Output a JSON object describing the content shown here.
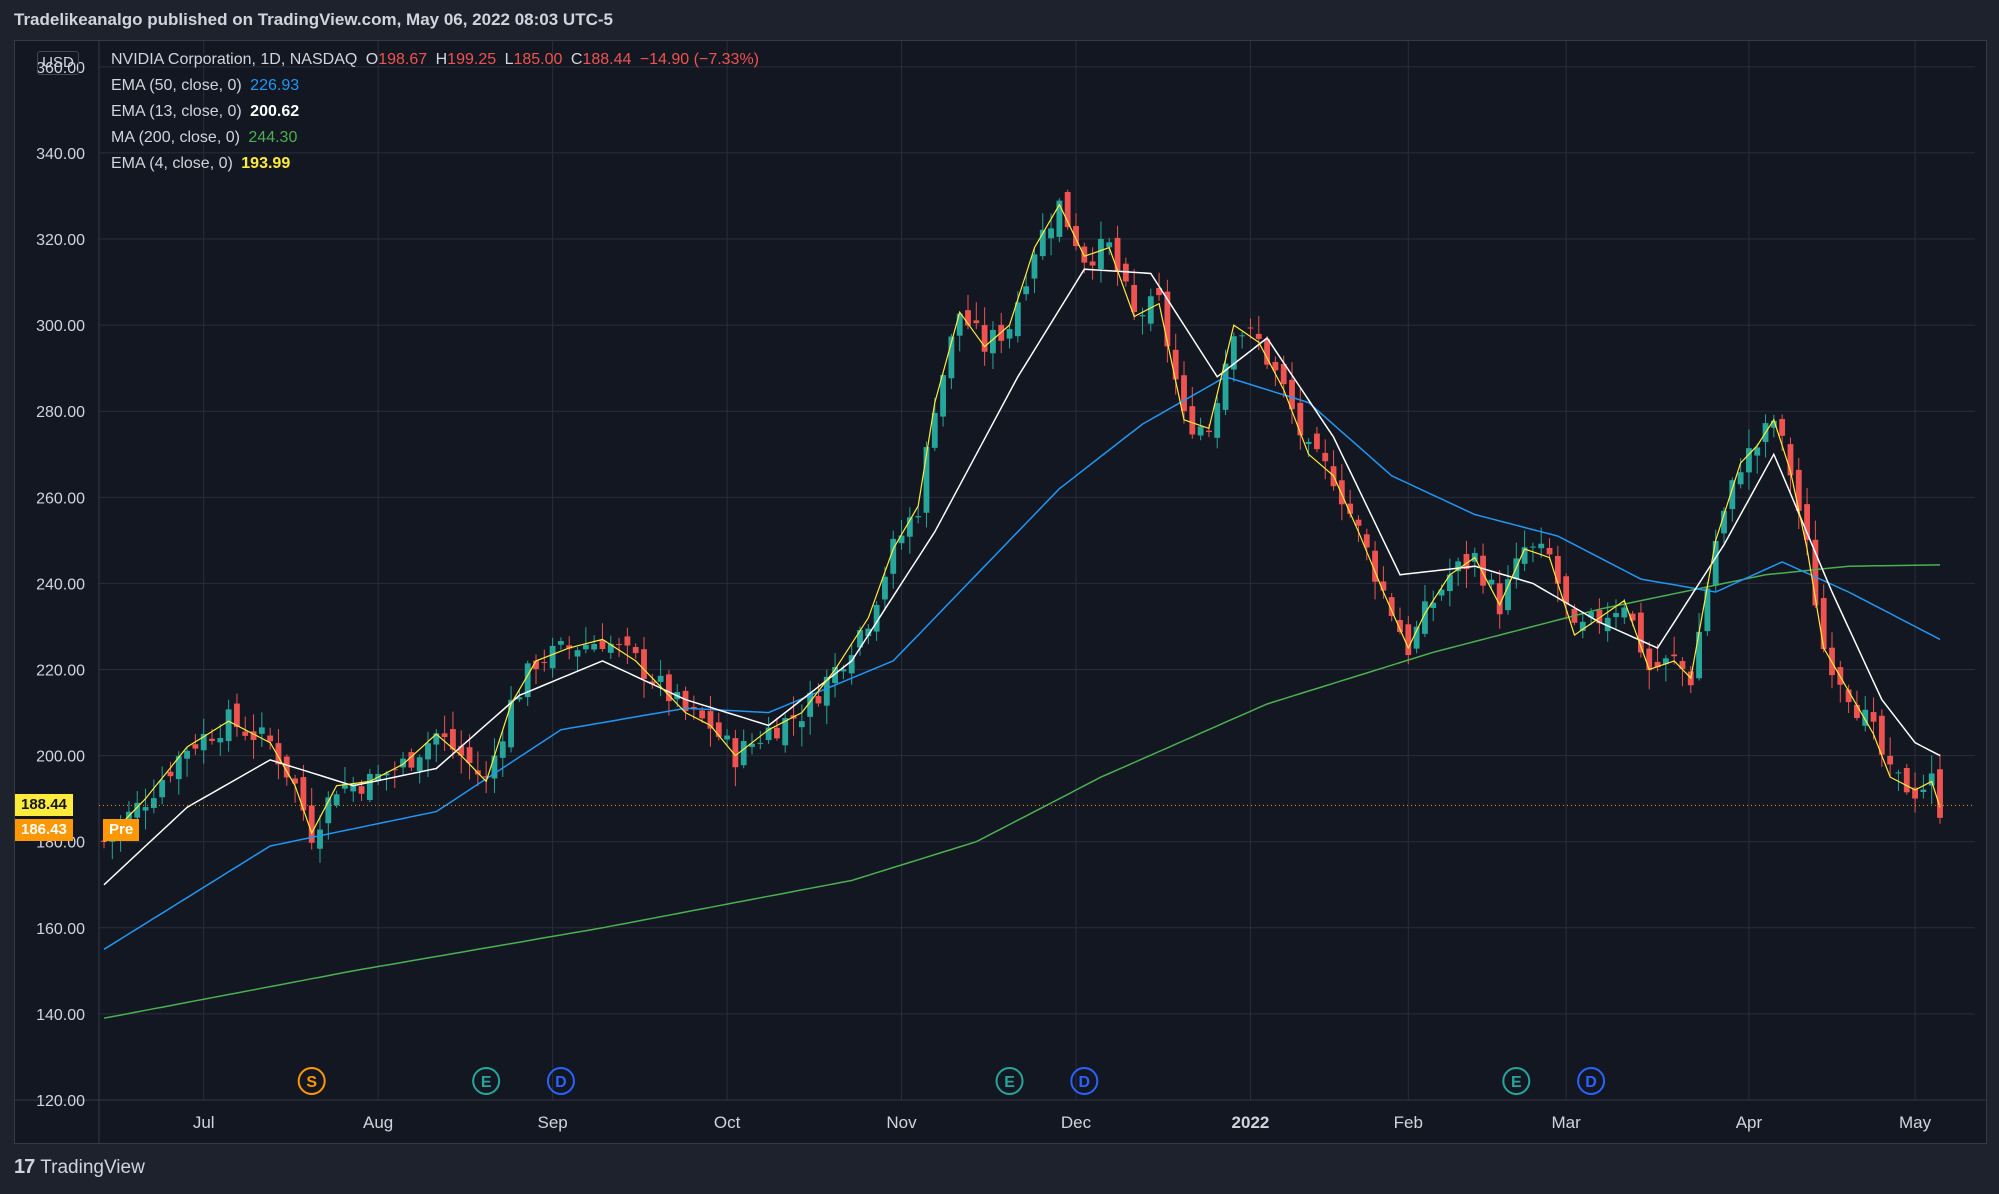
{
  "header": {
    "text": "Tradelikeanalgo published on TradingView.com, May 06, 2022 08:03 UTC-5"
  },
  "footer": {
    "brand": "TradingView"
  },
  "currency_label": "USD",
  "legend": {
    "symbol": "NVIDIA Corporation, 1D, NASDAQ",
    "o_label": "O",
    "o_value": "198.67",
    "h_label": "H",
    "h_value": "199.25",
    "l_label": "L",
    "l_value": "185.00",
    "c_label": "C",
    "c_value": "188.44",
    "change": "−14.90 (−7.33%)",
    "indicators": [
      {
        "label": "EMA (50, close, 0)",
        "value": "226.93",
        "color": "#2962ff"
      },
      {
        "label": "EMA (13, close, 0)",
        "value": "200.62",
        "color": "#ffffff"
      },
      {
        "label": "MA (200, close, 0)",
        "value": "244.30",
        "color": "#4caf50"
      },
      {
        "label": "EMA (4, close, 0)",
        "value": "193.99",
        "color": "#ffeb3b"
      }
    ]
  },
  "price_tags": {
    "last": "188.44",
    "pre_value": "186.43",
    "pre_label": "Pre"
  },
  "colors": {
    "up": "#26a69a",
    "down": "#ef5350",
    "ema50": "#2196f3",
    "ema13": "#ffffff",
    "ma200": "#4caf50",
    "ema4": "#ffeb3b",
    "grid": "#2a2e39",
    "text": "#d1d4dc",
    "last_tag": "#ffeb3b",
    "pre_tag": "#ff9800"
  },
  "chart_data": {
    "type": "candlestick",
    "y_ticks": [
      "360.00",
      "340.00",
      "320.00",
      "300.00",
      "280.00",
      "260.00",
      "240.00",
      "220.00",
      "200.00",
      "180.00",
      "160.00",
      "140.00",
      "120.00"
    ],
    "ylim": [
      120,
      366
    ],
    "x_labels": [
      "Jul",
      "Aug",
      "Sep",
      "Oct",
      "Nov",
      "Dec",
      "2022",
      "Feb",
      "Mar",
      "Apr",
      "May"
    ],
    "x_label_index": [
      12,
      33,
      54,
      75,
      96,
      117,
      138,
      157,
      176,
      198,
      218
    ],
    "num_bars": 222,
    "events": [
      {
        "letter": "S",
        "index": 25,
        "color": "#ff9800"
      },
      {
        "letter": "E",
        "index": 46,
        "color": "#26a69a"
      },
      {
        "letter": "D",
        "index": 55,
        "color": "#2962ff"
      },
      {
        "letter": "E",
        "index": 109,
        "color": "#26a69a"
      },
      {
        "letter": "D",
        "index": 118,
        "color": "#2962ff"
      },
      {
        "letter": "E",
        "index": 170,
        "color": "#26a69a"
      },
      {
        "letter": "D",
        "index": 179,
        "color": "#2962ff"
      }
    ],
    "close_anchors": [
      [
        0,
        180
      ],
      [
        5,
        190
      ],
      [
        10,
        202
      ],
      [
        15,
        208
      ],
      [
        20,
        203
      ],
      [
        23,
        193
      ],
      [
        25,
        182
      ],
      [
        28,
        193
      ],
      [
        32,
        194
      ],
      [
        36,
        198
      ],
      [
        40,
        205
      ],
      [
        43,
        200
      ],
      [
        46,
        194
      ],
      [
        49,
        212
      ],
      [
        52,
        222
      ],
      [
        56,
        225
      ],
      [
        60,
        227
      ],
      [
        64,
        222
      ],
      [
        66,
        218
      ],
      [
        70,
        210
      ],
      [
        73,
        207
      ],
      [
        76,
        200
      ],
      [
        80,
        206
      ],
      [
        84,
        210
      ],
      [
        88,
        220
      ],
      [
        92,
        232
      ],
      [
        95,
        248
      ],
      [
        98,
        258
      ],
      [
        100,
        282
      ],
      [
        103,
        303
      ],
      [
        106,
        295
      ],
      [
        109,
        300
      ],
      [
        112,
        318
      ],
      [
        115,
        328
      ],
      [
        118,
        316
      ],
      [
        121,
        318
      ],
      [
        124,
        302
      ],
      [
        127,
        305
      ],
      [
        130,
        278
      ],
      [
        133,
        276
      ],
      [
        136,
        300
      ],
      [
        139,
        296
      ],
      [
        142,
        285
      ],
      [
        145,
        270
      ],
      [
        148,
        265
      ],
      [
        151,
        252
      ],
      [
        154,
        238
      ],
      [
        157,
        225
      ],
      [
        159,
        233
      ],
      [
        162,
        242
      ],
      [
        165,
        246
      ],
      [
        168,
        235
      ],
      [
        171,
        248
      ],
      [
        174,
        246
      ],
      [
        177,
        228
      ],
      [
        180,
        232
      ],
      [
        183,
        236
      ],
      [
        186,
        220
      ],
      [
        189,
        222
      ],
      [
        191,
        218
      ],
      [
        194,
        250
      ],
      [
        197,
        268
      ],
      [
        199,
        272
      ],
      [
        201,
        278
      ],
      [
        203,
        266
      ],
      [
        205,
        248
      ],
      [
        207,
        225
      ],
      [
        210,
        215
      ],
      [
        213,
        205
      ],
      [
        215,
        195
      ],
      [
        218,
        192
      ],
      [
        220,
        194
      ],
      [
        221,
        188
      ]
    ],
    "ema50_anchors": [
      [
        0,
        155
      ],
      [
        20,
        179
      ],
      [
        40,
        187
      ],
      [
        55,
        206
      ],
      [
        70,
        211
      ],
      [
        80,
        210
      ],
      [
        95,
        222
      ],
      [
        105,
        242
      ],
      [
        115,
        262
      ],
      [
        125,
        277
      ],
      [
        135,
        288
      ],
      [
        145,
        282
      ],
      [
        155,
        265
      ],
      [
        165,
        256
      ],
      [
        175,
        251
      ],
      [
        185,
        241
      ],
      [
        194,
        238
      ],
      [
        202,
        245
      ],
      [
        210,
        238
      ],
      [
        221,
        227
      ]
    ],
    "ema13_anchors": [
      [
        0,
        170
      ],
      [
        10,
        188
      ],
      [
        20,
        199
      ],
      [
        30,
        193
      ],
      [
        40,
        197
      ],
      [
        50,
        214
      ],
      [
        60,
        222
      ],
      [
        70,
        213
      ],
      [
        80,
        207
      ],
      [
        90,
        222
      ],
      [
        100,
        252
      ],
      [
        110,
        288
      ],
      [
        118,
        313
      ],
      [
        126,
        312
      ],
      [
        134,
        288
      ],
      [
        140,
        297
      ],
      [
        148,
        274
      ],
      [
        156,
        242
      ],
      [
        165,
        244
      ],
      [
        172,
        240
      ],
      [
        180,
        231
      ],
      [
        187,
        225
      ],
      [
        195,
        249
      ],
      [
        201,
        270
      ],
      [
        208,
        238
      ],
      [
        214,
        213
      ],
      [
        218,
        203
      ],
      [
        221,
        200
      ]
    ],
    "ma200_anchors": [
      [
        0,
        139
      ],
      [
        30,
        150
      ],
      [
        60,
        160
      ],
      [
        90,
        171
      ],
      [
        105,
        180
      ],
      [
        120,
        195
      ],
      [
        140,
        212
      ],
      [
        160,
        224
      ],
      [
        180,
        234
      ],
      [
        200,
        242
      ],
      [
        210,
        244
      ],
      [
        221,
        244.3
      ]
    ]
  }
}
